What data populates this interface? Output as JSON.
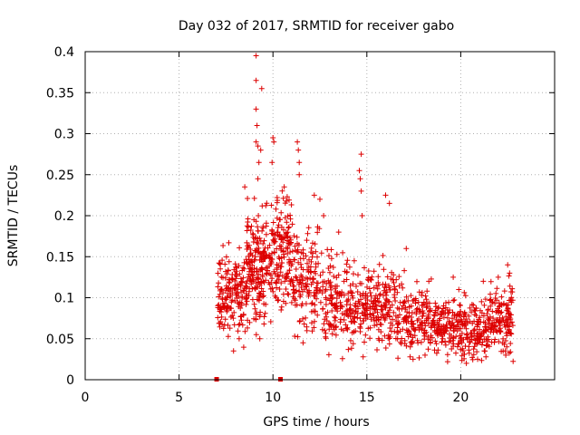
{
  "chart_data": {
    "type": "scatter",
    "title": "Day 032 of 2017, SRMTID for receiver gabo",
    "xlabel": "GPS time / hours",
    "ylabel": "SRMTID / TECUs",
    "xlim": [
      0,
      25
    ],
    "ylim": [
      0,
      0.4
    ],
    "xticks": [
      0,
      5,
      10,
      15,
      20
    ],
    "xtick_labels": [
      "0",
      "5",
      "10",
      "15",
      "20"
    ],
    "yticks": [
      0,
      0.05,
      0.1,
      0.15,
      0.2,
      0.25,
      0.3,
      0.35,
      0.4
    ],
    "ytick_labels": [
      "0",
      "0.05",
      "0.1",
      "0.15",
      "0.2",
      "0.25",
      "0.3",
      "0.35",
      "0.4"
    ],
    "grid": true,
    "marker": "+",
    "color": "#dd0000",
    "zero_markers": [
      7.0,
      10.4
    ],
    "segments": [
      {
        "t0": 7.05,
        "t1": 8.6,
        "n": 170,
        "base": 0.105,
        "spread": 0.035
      },
      {
        "t0": 8.6,
        "t1": 9.6,
        "n": 170,
        "base": 0.135,
        "spread": 0.045
      },
      {
        "t0": 9.6,
        "t1": 11.0,
        "n": 180,
        "base": 0.15,
        "spread": 0.05
      },
      {
        "t0": 11.0,
        "t1": 12.5,
        "n": 140,
        "base": 0.115,
        "spread": 0.04
      },
      {
        "t0": 12.5,
        "t1": 14.0,
        "n": 130,
        "base": 0.095,
        "spread": 0.035
      },
      {
        "t0": 14.0,
        "t1": 15.5,
        "n": 130,
        "base": 0.09,
        "spread": 0.035
      },
      {
        "t0": 15.5,
        "t1": 17.0,
        "n": 130,
        "base": 0.085,
        "spread": 0.035
      },
      {
        "t0": 17.0,
        "t1": 18.5,
        "n": 130,
        "base": 0.072,
        "spread": 0.025
      },
      {
        "t0": 18.5,
        "t1": 20.0,
        "n": 140,
        "base": 0.065,
        "spread": 0.025
      },
      {
        "t0": 20.0,
        "t1": 21.5,
        "n": 140,
        "base": 0.06,
        "spread": 0.025
      },
      {
        "t0": 21.5,
        "t1": 22.8,
        "n": 130,
        "base": 0.075,
        "spread": 0.03
      }
    ],
    "outliers": [
      {
        "x": 9.1,
        "y": 0.395
      },
      {
        "x": 9.1,
        "y": 0.365
      },
      {
        "x": 9.4,
        "y": 0.355
      },
      {
        "x": 9.1,
        "y": 0.33
      },
      {
        "x": 9.15,
        "y": 0.31
      },
      {
        "x": 9.1,
        "y": 0.29
      },
      {
        "x": 9.2,
        "y": 0.285
      },
      {
        "x": 9.35,
        "y": 0.28
      },
      {
        "x": 9.25,
        "y": 0.265
      },
      {
        "x": 10.0,
        "y": 0.295
      },
      {
        "x": 10.05,
        "y": 0.29
      },
      {
        "x": 9.95,
        "y": 0.265
      },
      {
        "x": 11.3,
        "y": 0.29
      },
      {
        "x": 11.35,
        "y": 0.28
      },
      {
        "x": 11.4,
        "y": 0.265
      },
      {
        "x": 11.4,
        "y": 0.25
      },
      {
        "x": 14.7,
        "y": 0.275
      },
      {
        "x": 14.6,
        "y": 0.255
      },
      {
        "x": 14.65,
        "y": 0.245
      },
      {
        "x": 14.7,
        "y": 0.23
      },
      {
        "x": 9.2,
        "y": 0.245
      },
      {
        "x": 10.6,
        "y": 0.235
      },
      {
        "x": 8.5,
        "y": 0.235
      },
      {
        "x": 12.2,
        "y": 0.225
      },
      {
        "x": 12.5,
        "y": 0.22
      },
      {
        "x": 16.0,
        "y": 0.225
      },
      {
        "x": 16.2,
        "y": 0.215
      },
      {
        "x": 14.75,
        "y": 0.2
      },
      {
        "x": 7.9,
        "y": 0.035
      },
      {
        "x": 8.2,
        "y": 0.05
      },
      {
        "x": 9.3,
        "y": 0.05
      },
      {
        "x": 11.6,
        "y": 0.045
      },
      {
        "x": 14.8,
        "y": 0.028
      },
      {
        "x": 17.3,
        "y": 0.028
      },
      {
        "x": 18.1,
        "y": 0.03
      },
      {
        "x": 19.3,
        "y": 0.022
      },
      {
        "x": 20.3,
        "y": 0.02
      },
      {
        "x": 20.9,
        "y": 0.025
      },
      {
        "x": 22.4,
        "y": 0.03
      },
      {
        "x": 22.5,
        "y": 0.14
      },
      {
        "x": 22.6,
        "y": 0.13
      },
      {
        "x": 22.0,
        "y": 0.125
      },
      {
        "x": 17.1,
        "y": 0.16
      },
      {
        "x": 18.3,
        "y": 0.12
      },
      {
        "x": 19.6,
        "y": 0.125
      },
      {
        "x": 19.9,
        "y": 0.11
      },
      {
        "x": 21.2,
        "y": 0.12
      },
      {
        "x": 13.5,
        "y": 0.18
      },
      {
        "x": 11.8,
        "y": 0.17
      },
      {
        "x": 12.7,
        "y": 0.2
      }
    ]
  }
}
